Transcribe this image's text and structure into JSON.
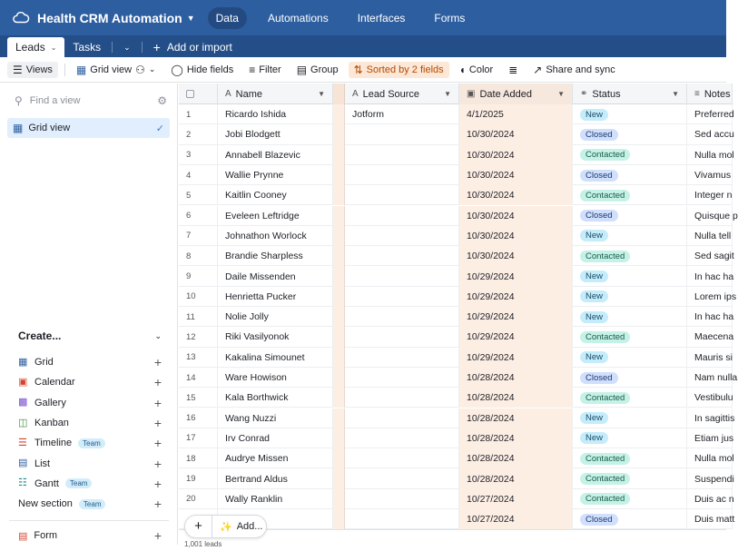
{
  "app": {
    "base_title": "Health CRM Automation",
    "nav": [
      "Data",
      "Automations",
      "Interfaces",
      "Forms"
    ],
    "active_nav": "Data"
  },
  "tables": {
    "tabs": [
      "Leads",
      "Tasks"
    ],
    "add_label": "Add or import"
  },
  "toolbar": {
    "views": "Views",
    "grid_view": "Grid view",
    "hide_fields": "Hide fields",
    "filter": "Filter",
    "group": "Group",
    "sorted": "Sorted by 2 fields",
    "color": "Color",
    "share": "Share and sync"
  },
  "sidebar": {
    "find_placeholder": "Find a view",
    "active_view": "Grid view",
    "create_heading": "Create...",
    "create_items": [
      {
        "label": "Grid",
        "icon": "grid-icon",
        "badge": ""
      },
      {
        "label": "Calendar",
        "icon": "calendar-icon",
        "badge": ""
      },
      {
        "label": "Gallery",
        "icon": "gallery-icon",
        "badge": ""
      },
      {
        "label": "Kanban",
        "icon": "kanban-icon",
        "badge": ""
      },
      {
        "label": "Timeline",
        "icon": "timeline-icon",
        "badge": "Team"
      },
      {
        "label": "List",
        "icon": "list-icon",
        "badge": ""
      },
      {
        "label": "Gantt",
        "icon": "gantt-icon",
        "badge": "Team"
      },
      {
        "label": "New section",
        "icon": "",
        "badge": "Team"
      }
    ],
    "form_label": "Form"
  },
  "grid": {
    "columns": {
      "name": "Name",
      "lead_source": "Lead Source",
      "date_added": "Date Added",
      "status": "Status",
      "notes": "Notes"
    },
    "rows": [
      {
        "n": "1",
        "name": "Ricardo Ishida",
        "source": "Jotform",
        "date": "4/1/2025",
        "status": "New",
        "notes": "Preferred"
      },
      {
        "n": "2",
        "name": "Jobi Blodgett",
        "source": "",
        "date": "10/30/2024",
        "status": "Closed",
        "notes": "Sed accu"
      },
      {
        "n": "3",
        "name": "Annabell Blazevic",
        "source": "",
        "date": "10/30/2024",
        "status": "Contacted",
        "notes": "Nulla mol"
      },
      {
        "n": "4",
        "name": "Wallie Prynne",
        "source": "",
        "date": "10/30/2024",
        "status": "Closed",
        "notes": "Vivamus"
      },
      {
        "n": "5",
        "name": "Kaitlin Cooney",
        "source": "",
        "date": "10/30/2024",
        "status": "Contacted",
        "notes": "Integer n"
      },
      {
        "n": "6",
        "name": "Eveleen Leftridge",
        "source": "",
        "date": "10/30/2024",
        "status": "Closed",
        "notes": "Quisque p"
      },
      {
        "n": "7",
        "name": "Johnathon Worlock",
        "source": "",
        "date": "10/30/2024",
        "status": "New",
        "notes": "Nulla tell"
      },
      {
        "n": "8",
        "name": "Brandie Sharpless",
        "source": "",
        "date": "10/30/2024",
        "status": "Contacted",
        "notes": "Sed sagit"
      },
      {
        "n": "9",
        "name": "Daile Missenden",
        "source": "",
        "date": "10/29/2024",
        "status": "New",
        "notes": "In hac ha"
      },
      {
        "n": "10",
        "name": "Henrietta Pucker",
        "source": "",
        "date": "10/29/2024",
        "status": "New",
        "notes": "Lorem ips"
      },
      {
        "n": "11",
        "name": "Nolie Jolly",
        "source": "",
        "date": "10/29/2024",
        "status": "New",
        "notes": "In hac ha"
      },
      {
        "n": "12",
        "name": "Riki Vasilyonok",
        "source": "",
        "date": "10/29/2024",
        "status": "Contacted",
        "notes": "Maecena"
      },
      {
        "n": "13",
        "name": "Kakalina Simounet",
        "source": "",
        "date": "10/29/2024",
        "status": "New",
        "notes": "Mauris si"
      },
      {
        "n": "14",
        "name": "Ware Howison",
        "source": "",
        "date": "10/28/2024",
        "status": "Closed",
        "notes": "Nam nulla"
      },
      {
        "n": "15",
        "name": "Kala Borthwick",
        "source": "",
        "date": "10/28/2024",
        "status": "Contacted",
        "notes": "Vestibulu"
      },
      {
        "n": "16",
        "name": "Wang Nuzzi",
        "source": "",
        "date": "10/28/2024",
        "status": "New",
        "notes": "In sagittis"
      },
      {
        "n": "17",
        "name": "Irv Conrad",
        "source": "",
        "date": "10/28/2024",
        "status": "New",
        "notes": "Etiam jus"
      },
      {
        "n": "18",
        "name": "Audrye Missen",
        "source": "",
        "date": "10/28/2024",
        "status": "Contacted",
        "notes": "Nulla mol"
      },
      {
        "n": "19",
        "name": "Bertrand Aldus",
        "source": "",
        "date": "10/28/2024",
        "status": "Contacted",
        "notes": "Suspendi"
      },
      {
        "n": "20",
        "name": "Wally Ranklin",
        "source": "",
        "date": "10/27/2024",
        "status": "Contacted",
        "notes": "Duis ac n"
      },
      {
        "n": "",
        "name": "",
        "source": "",
        "date": "10/27/2024",
        "status": "Closed",
        "notes": "Duis matt"
      }
    ],
    "add_label": "Add...",
    "record_count": "1,001 leads"
  },
  "colors": {
    "topbar": "#2d5ea0",
    "sorted_bg": "#fde7d7",
    "date_col_bg": "#fdeee4"
  }
}
